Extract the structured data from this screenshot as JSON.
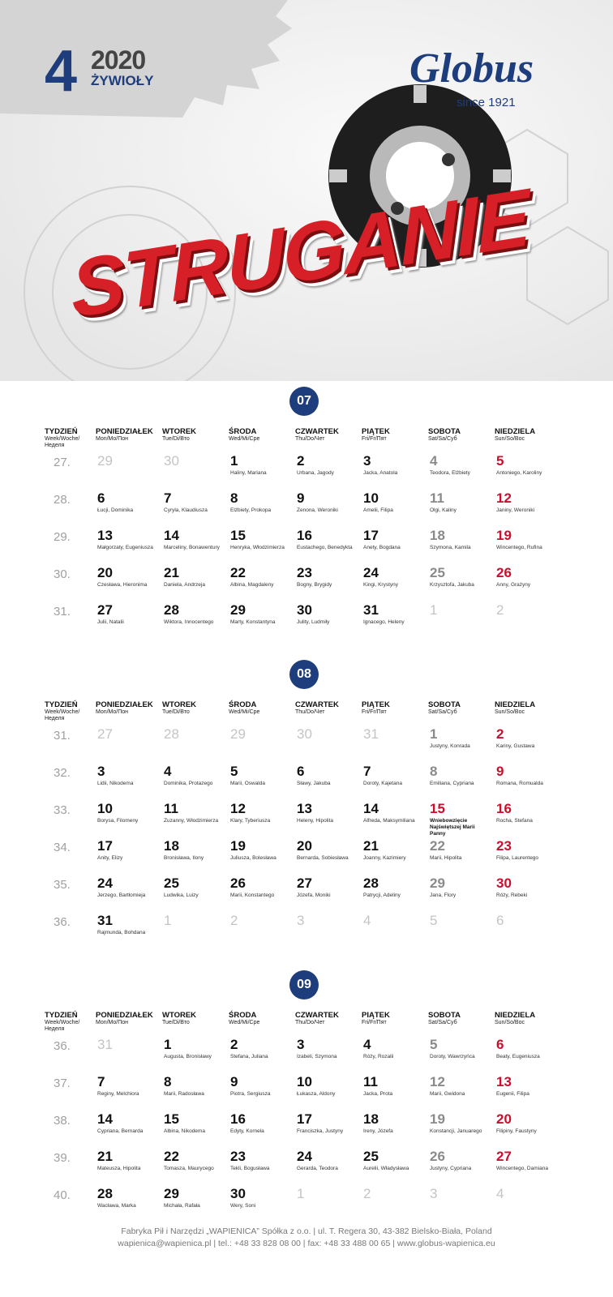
{
  "header": {
    "badge": "4",
    "year": "2020",
    "subtitle": "ŻYWIOŁY",
    "logo": "Globus",
    "since": "since 1921",
    "title": "STRUGANIE"
  },
  "weekdays": [
    {
      "name": "TYDZIEŃ",
      "sub": "Week/Woche/Неделя"
    },
    {
      "name": "PONIEDZIAŁEK",
      "sub": "Mon/Mo/Пон"
    },
    {
      "name": "WTOREK",
      "sub": "Tue/Di/Вто"
    },
    {
      "name": "ŚRODA",
      "sub": "Wed/Mi/Сре"
    },
    {
      "name": "CZWARTEK",
      "sub": "Thu/Do/Чет"
    },
    {
      "name": "PIĄTEK",
      "sub": "Fri/Fr/Пят"
    },
    {
      "name": "SOBOTA",
      "sub": "Sat/Sa/Суб"
    },
    {
      "name": "NIEDZIELA",
      "sub": "Sun/So/Вос"
    }
  ],
  "months": [
    {
      "number": "07",
      "weeks": [
        {
          "week": "27.",
          "days": [
            {
              "day": "29"
            },
            {
              "day": "30"
            },
            {
              "day": "1",
              "names": "Haliny, Mariana"
            },
            {
              "day": "2",
              "names": "Urbana, Jagody"
            },
            {
              "day": "3",
              "names": "Jacka, Anatola"
            },
            {
              "day": "4",
              "names": "Teodora, Elżbiety"
            },
            {
              "day": "5",
              "names": "Antoniego, Karoliny"
            }
          ]
        },
        {
          "week": "28.",
          "days": [
            {
              "day": "6",
              "names": "Łucji, Dominika"
            },
            {
              "day": "7",
              "names": "Cyryla, Klaudiusza"
            },
            {
              "day": "8",
              "names": "Elżbiety, Prokopa"
            },
            {
              "day": "9",
              "names": "Zenona, Weroniki"
            },
            {
              "day": "10",
              "names": "Amelii, Filipa"
            },
            {
              "day": "11",
              "names": "Olgi, Kaliny"
            },
            {
              "day": "12",
              "names": "Janiny, Weroniki"
            }
          ]
        },
        {
          "week": "29.",
          "days": [
            {
              "day": "13",
              "names": "Małgorzaty, Eugeniusza"
            },
            {
              "day": "14",
              "names": "Marceliny, Bonawentury"
            },
            {
              "day": "15",
              "names": "Henryka, Włodzimierza"
            },
            {
              "day": "16",
              "names": "Eustachego, Benedykta"
            },
            {
              "day": "17",
              "names": "Anety, Bogdana"
            },
            {
              "day": "18",
              "names": "Szymona, Kamila"
            },
            {
              "day": "19",
              "names": "Wincentego, Rufina"
            }
          ]
        },
        {
          "week": "30.",
          "days": [
            {
              "day": "20",
              "names": "Czesława, Hieronima"
            },
            {
              "day": "21",
              "names": "Daniela, Andrzeja"
            },
            {
              "day": "22",
              "names": "Albina, Magdaleny"
            },
            {
              "day": "23",
              "names": "Bogny, Brygidy"
            },
            {
              "day": "24",
              "names": "Kingi, Krystyny"
            },
            {
              "day": "25",
              "names": "Krzysztofa, Jakuba"
            },
            {
              "day": "26",
              "names": "Anny, Grażyny"
            }
          ]
        },
        {
          "week": "31.",
          "days": [
            {
              "day": "27",
              "names": "Julii, Natalii"
            },
            {
              "day": "28",
              "names": "Wiktora, Innocentego"
            },
            {
              "day": "29",
              "names": "Marty, Konstantyna"
            },
            {
              "day": "30",
              "names": "Julity, Ludmiły"
            },
            {
              "day": "31",
              "names": "Ignacego, Heleny"
            },
            {
              "day": "1"
            },
            {
              "day": "2"
            }
          ]
        }
      ]
    },
    {
      "number": "08",
      "weeks": [
        {
          "week": "31.",
          "days": [
            {
              "day": "27"
            },
            {
              "day": "28"
            },
            {
              "day": "29"
            },
            {
              "day": "30"
            },
            {
              "day": "31"
            },
            {
              "day": "1",
              "names": "Justyny, Konrada"
            },
            {
              "day": "2",
              "names": "Kariny, Gustawa"
            }
          ]
        },
        {
          "week": "32.",
          "days": [
            {
              "day": "3",
              "names": "Lidii, Nikodema"
            },
            {
              "day": "4",
              "names": "Dominika, Protazego"
            },
            {
              "day": "5",
              "names": "Marii, Oswalda"
            },
            {
              "day": "6",
              "names": "Sławy, Jakuba"
            },
            {
              "day": "7",
              "names": "Doroty, Kajetana"
            },
            {
              "day": "8",
              "names": "Emiliana, Cypriana"
            },
            {
              "day": "9",
              "names": "Romana, Romualda"
            }
          ]
        },
        {
          "week": "33.",
          "days": [
            {
              "day": "10",
              "names": "Borysa, Filomeny"
            },
            {
              "day": "11",
              "names": "Zuzanny, Włodzimierza"
            },
            {
              "day": "12",
              "names": "Klary, Tyberiusza"
            },
            {
              "day": "13",
              "names": "Heleny, Hipolita"
            },
            {
              "day": "14",
              "names": "Alfreda, Maksymiliana"
            },
            {
              "day": "15",
              "names": "Wniebowzięcie Najświętszej Marii Panny",
              "holiday": true
            },
            {
              "day": "16",
              "names": "Rocha, Stefana"
            }
          ]
        },
        {
          "week": "34.",
          "days": [
            {
              "day": "17",
              "names": "Anity, Elizy"
            },
            {
              "day": "18",
              "names": "Bronisława, Ilony"
            },
            {
              "day": "19",
              "names": "Juliusza, Bolesława"
            },
            {
              "day": "20",
              "names": "Bernarda, Sobiesława"
            },
            {
              "day": "21",
              "names": "Joanny, Kazimiery"
            },
            {
              "day": "22",
              "names": "Marii, Hipolita"
            },
            {
              "day": "23",
              "names": "Filipa, Laurentego"
            }
          ]
        },
        {
          "week": "35.",
          "days": [
            {
              "day": "24",
              "names": "Jerzego, Bartłomieja"
            },
            {
              "day": "25",
              "names": "Ludwika, Luizy"
            },
            {
              "day": "26",
              "names": "Marii, Konstantego"
            },
            {
              "day": "27",
              "names": "Józefa, Moniki"
            },
            {
              "day": "28",
              "names": "Patrycji, Adeliny"
            },
            {
              "day": "29",
              "names": "Jana, Flory"
            },
            {
              "day": "30",
              "names": "Róży, Rebeki"
            }
          ]
        },
        {
          "week": "36.",
          "days": [
            {
              "day": "31",
              "names": "Rajmunda, Bohdana"
            },
            {
              "day": "1"
            },
            {
              "day": "2"
            },
            {
              "day": "3"
            },
            {
              "day": "4"
            },
            {
              "day": "5"
            },
            {
              "day": "6"
            }
          ]
        }
      ]
    },
    {
      "number": "09",
      "weeks": [
        {
          "week": "36.",
          "days": [
            {
              "day": "31"
            },
            {
              "day": "1",
              "names": "Augusta, Bronisławy"
            },
            {
              "day": "2",
              "names": "Stefana, Juliana"
            },
            {
              "day": "3",
              "names": "Izabeli, Szymona"
            },
            {
              "day": "4",
              "names": "Róży, Rozalii"
            },
            {
              "day": "5",
              "names": "Doroty, Wawrzyńca"
            },
            {
              "day": "6",
              "names": "Beaty, Eugeniusza"
            }
          ]
        },
        {
          "week": "37.",
          "days": [
            {
              "day": "7",
              "names": "Reginy, Melchiora"
            },
            {
              "day": "8",
              "names": "Marii, Radosława"
            },
            {
              "day": "9",
              "names": "Piotra, Sergiusza"
            },
            {
              "day": "10",
              "names": "Łukasza, Aldony"
            },
            {
              "day": "11",
              "names": "Jacka, Prota"
            },
            {
              "day": "12",
              "names": "Marii, Gwidona"
            },
            {
              "day": "13",
              "names": "Eugenii, Filipa"
            }
          ]
        },
        {
          "week": "38.",
          "days": [
            {
              "day": "14",
              "names": "Cypriana, Bernarda"
            },
            {
              "day": "15",
              "names": "Albina, Nikodema"
            },
            {
              "day": "16",
              "names": "Edyty, Kornela"
            },
            {
              "day": "17",
              "names": "Franciszka, Justyny"
            },
            {
              "day": "18",
              "names": "Ireny, Józefa"
            },
            {
              "day": "19",
              "names": "Konstancji, Januarego"
            },
            {
              "day": "20",
              "names": "Filipiny, Faustyny"
            }
          ]
        },
        {
          "week": "39.",
          "days": [
            {
              "day": "21",
              "names": "Mateusza, Hipolita"
            },
            {
              "day": "22",
              "names": "Tomasza, Maurycego"
            },
            {
              "day": "23",
              "names": "Tekli, Bogusława"
            },
            {
              "day": "24",
              "names": "Gerarda, Teodora"
            },
            {
              "day": "25",
              "names": "Aurelii, Władysława"
            },
            {
              "day": "26",
              "names": "Justyny, Cypriana"
            },
            {
              "day": "27",
              "names": "Wincentego, Damiana"
            }
          ]
        },
        {
          "week": "40.",
          "days": [
            {
              "day": "28",
              "names": "Wacława, Marka"
            },
            {
              "day": "29",
              "names": "Michała, Rafała"
            },
            {
              "day": "30",
              "names": "Wery, Soni"
            },
            {
              "day": "1"
            },
            {
              "day": "2"
            },
            {
              "day": "3"
            },
            {
              "day": "4"
            }
          ]
        }
      ]
    }
  ],
  "footer": {
    "line1": "Fabryka Pił i Narzędzi „WAPIENICA” Spółka z o.o. | ul. T. Regera 30, 43-382 Bielsko-Biała, Poland",
    "line2": "wapienica@wapienica.pl | tel.: +48 33 828 08 00 | fax: +48 33 488 00 65 | www.globus-wapienica.eu"
  }
}
